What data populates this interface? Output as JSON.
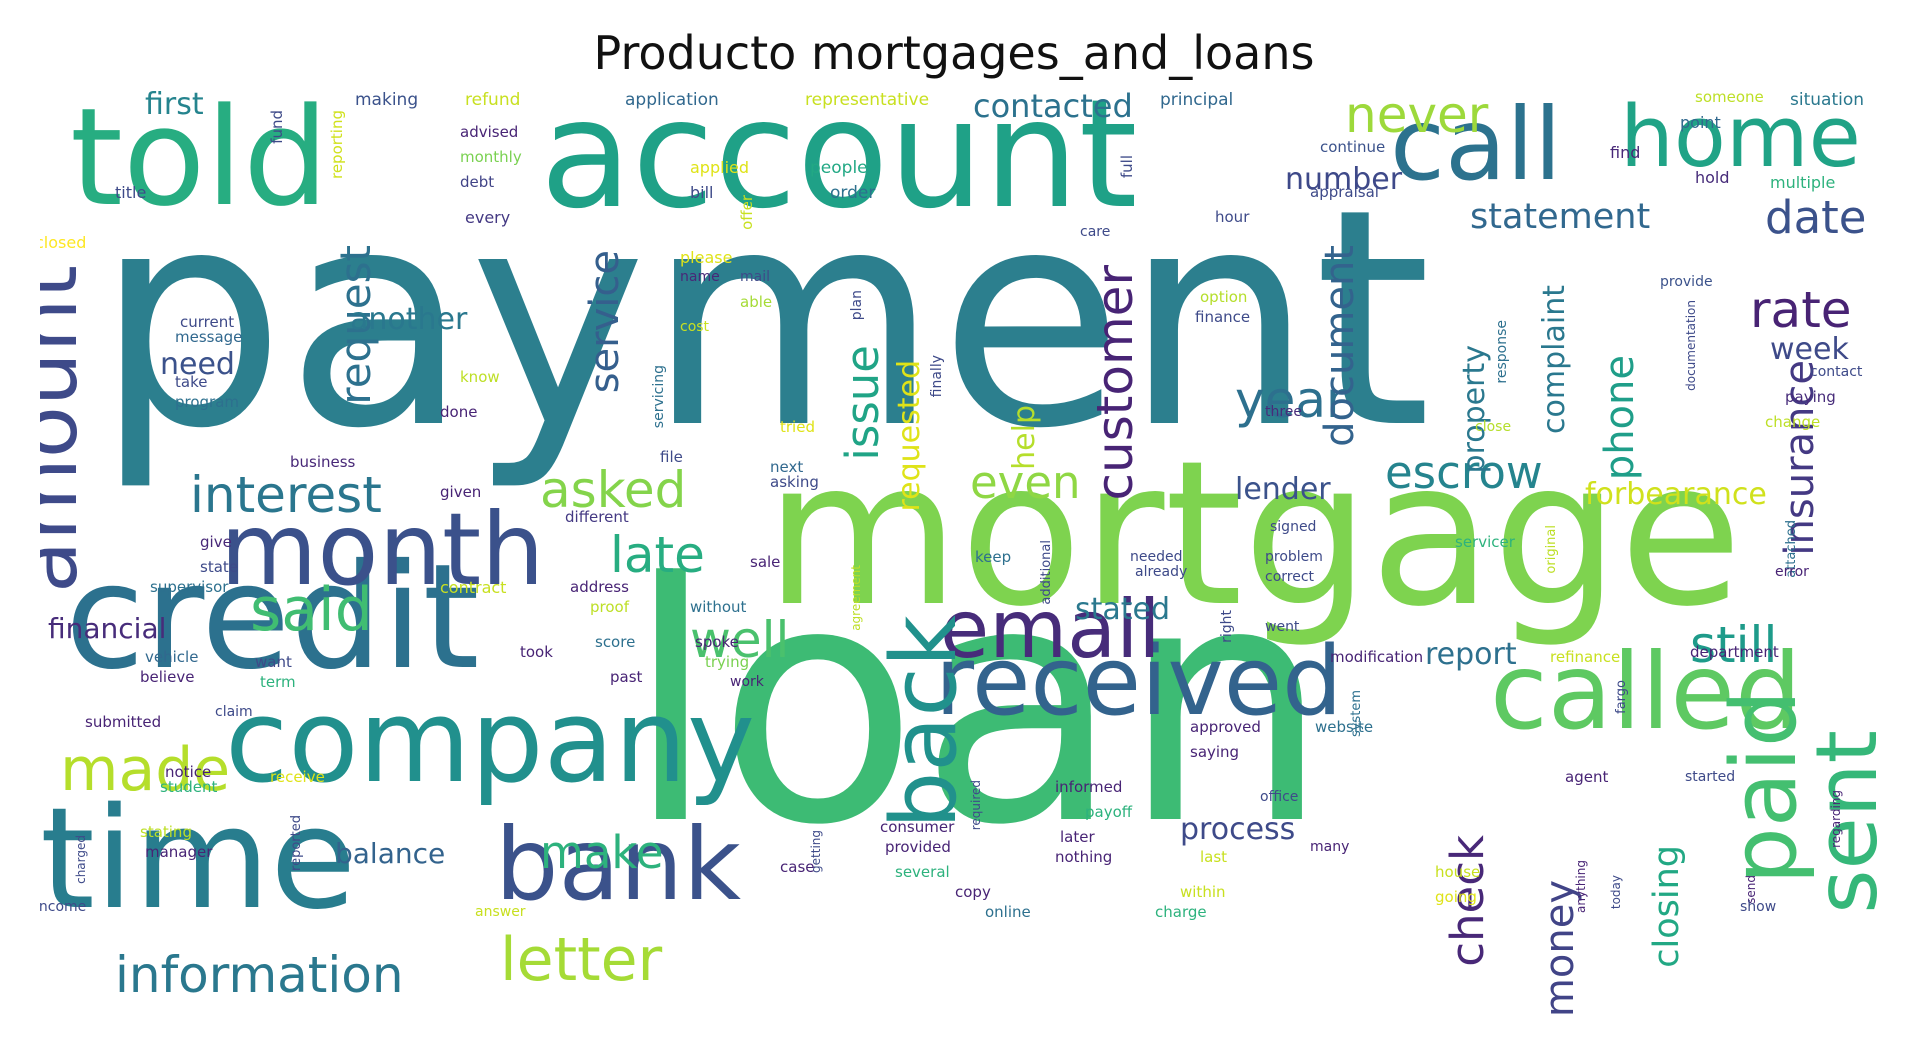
{
  "title": "Producto mortgages_and_loans",
  "palette": {
    "dark_purple": "#472c7a",
    "indigo": "#3b518b",
    "blue": "#2c718e",
    "teal": "#21908d",
    "green": "#27ad81",
    "light_green": "#5cc863",
    "lime": "#aadc32",
    "yellow": "#fde725"
  },
  "words": [
    {
      "text": "payment",
      "color": "#2c7f8e"
    },
    {
      "text": "loan",
      "color": "#3dbb74"
    },
    {
      "text": "mortgage",
      "color": "#7ed34f"
    },
    {
      "text": "account",
      "color": "#1fa187"
    },
    {
      "text": "told",
      "color": "#27ad81"
    },
    {
      "text": "credit",
      "color": "#2c718e"
    },
    {
      "text": "time",
      "color": "#287d8e"
    },
    {
      "text": "company",
      "color": "#21908d"
    },
    {
      "text": "month",
      "color": "#3b518b"
    },
    {
      "text": "received",
      "color": "#33638d"
    },
    {
      "text": "call",
      "color": "#2c728e"
    },
    {
      "text": "home",
      "color": "#20a386"
    },
    {
      "text": "called",
      "color": "#5ec962"
    },
    {
      "text": "bank",
      "color": "#3b528b"
    },
    {
      "text": "email",
      "color": "#472c7a"
    },
    {
      "text": "back",
      "color": "#21918c"
    },
    {
      "text": "paid",
      "color": "#44bf70"
    },
    {
      "text": "sent",
      "color": "#35b779"
    },
    {
      "text": "amount",
      "color": "#3e4a89"
    },
    {
      "text": "letter",
      "color": "#a5db36"
    },
    {
      "text": "information",
      "color": "#2a788e"
    },
    {
      "text": "made",
      "color": "#b5de2b"
    },
    {
      "text": "said",
      "color": "#40bd72"
    },
    {
      "text": "interest",
      "color": "#2a768e"
    },
    {
      "text": "never",
      "color": "#9dd93b"
    },
    {
      "text": "date",
      "color": "#3b528b"
    },
    {
      "text": "rate",
      "color": "#482374"
    },
    {
      "text": "year",
      "color": "#2d708e"
    },
    {
      "text": "customer",
      "color": "#482475"
    },
    {
      "text": "escrow",
      "color": "#25848e"
    },
    {
      "text": "document",
      "color": "#33638d"
    },
    {
      "text": "service",
      "color": "#355f8d"
    },
    {
      "text": "request",
      "color": "#2d718e"
    },
    {
      "text": "issue",
      "color": "#20a486"
    },
    {
      "text": "asked",
      "color": "#84d44b"
    },
    {
      "text": "late",
      "color": "#27ad81"
    },
    {
      "text": "well",
      "color": "#4ac16d"
    },
    {
      "text": "still",
      "color": "#1e9b8a"
    },
    {
      "text": "insurance",
      "color": "#443983"
    },
    {
      "text": "check",
      "color": "#482878"
    },
    {
      "text": "money",
      "color": "#414487"
    },
    {
      "text": "closing",
      "color": "#22a884"
    },
    {
      "text": "make",
      "color": "#2db27d"
    },
    {
      "text": "even",
      "color": "#8fd744"
    },
    {
      "text": "phone",
      "color": "#1f9e89"
    },
    {
      "text": "statement",
      "color": "#31688e"
    },
    {
      "text": "contacted",
      "color": "#2c728e"
    },
    {
      "text": "first",
      "color": "#25848e"
    },
    {
      "text": "need",
      "color": "#3b528b"
    },
    {
      "text": "another",
      "color": "#2a788e"
    },
    {
      "text": "number",
      "color": "#3e4989"
    },
    {
      "text": "lender",
      "color": "#3b528b"
    },
    {
      "text": "forbearance",
      "color": "#d0e11c"
    },
    {
      "text": "process",
      "color": "#3e4a89"
    },
    {
      "text": "report",
      "color": "#2d708e"
    },
    {
      "text": "stated",
      "color": "#2a788e"
    },
    {
      "text": "balance",
      "color": "#33638d"
    },
    {
      "text": "financial",
      "color": "#472c7a"
    },
    {
      "text": "help",
      "color": "#b5de2b"
    },
    {
      "text": "requested",
      "color": "#dfe318"
    },
    {
      "text": "property",
      "color": "#2a788e"
    },
    {
      "text": "complaint",
      "color": "#2a788e"
    },
    {
      "text": "week",
      "color": "#3e4a89"
    },
    {
      "text": "making",
      "color": "#3b528b"
    },
    {
      "text": "refund",
      "color": "#c8e020"
    },
    {
      "text": "application",
      "color": "#31688e"
    },
    {
      "text": "representative",
      "color": "#c8e020"
    },
    {
      "text": "principal",
      "color": "#31688e"
    },
    {
      "text": "point",
      "color": "#31688e"
    },
    {
      "text": "someone",
      "color": "#bddf26"
    },
    {
      "text": "situation",
      "color": "#2a788e"
    },
    {
      "text": "fund",
      "color": "#3e4a89"
    },
    {
      "text": "reporting",
      "color": "#d0e11c"
    },
    {
      "text": "advised",
      "color": "#482475"
    },
    {
      "text": "monthly",
      "color": "#7ad151"
    },
    {
      "text": "debt",
      "color": "#414487"
    },
    {
      "text": "applied",
      "color": "#dfe318"
    },
    {
      "text": "bill",
      "color": "#3e4a89"
    },
    {
      "text": "people",
      "color": "#22a884"
    },
    {
      "text": "order",
      "color": "#2d708e"
    },
    {
      "text": "continue",
      "color": "#3b528b"
    },
    {
      "text": "appraisal",
      "color": "#3e4a89"
    },
    {
      "text": "find",
      "color": "#482878"
    },
    {
      "text": "hold",
      "color": "#472c7a"
    },
    {
      "text": "multiple",
      "color": "#2db27d"
    },
    {
      "text": "title",
      "color": "#3e4a89"
    },
    {
      "text": "every",
      "color": "#443983"
    },
    {
      "text": "offer",
      "color": "#c8e020"
    },
    {
      "text": "full",
      "color": "#3e4a89"
    },
    {
      "text": "hour",
      "color": "#3e4a89"
    },
    {
      "text": "closed",
      "color": "#fde725"
    },
    {
      "text": "please",
      "color": "#dfe318"
    },
    {
      "text": "name",
      "color": "#482878"
    },
    {
      "text": "mail",
      "color": "#3e4a89"
    },
    {
      "text": "care",
      "color": "#3e4a89"
    },
    {
      "text": "provide",
      "color": "#3b528b"
    },
    {
      "text": "able",
      "color": "#a5db36"
    },
    {
      "text": "current",
      "color": "#3e4a89"
    },
    {
      "text": "message",
      "color": "#31688e"
    },
    {
      "text": "cost",
      "color": "#c8e020"
    },
    {
      "text": "option",
      "color": "#b5de2b"
    },
    {
      "text": "finance",
      "color": "#3e4a89"
    },
    {
      "text": "plan",
      "color": "#3e4a89"
    },
    {
      "text": "response",
      "color": "#2d708e"
    },
    {
      "text": "documentation",
      "color": "#3e4a89"
    },
    {
      "text": "contact",
      "color": "#3e4a89"
    },
    {
      "text": "take",
      "color": "#3e4a89"
    },
    {
      "text": "program",
      "color": "#2d708e"
    },
    {
      "text": "know",
      "color": "#bddf26"
    },
    {
      "text": "done",
      "color": "#482475"
    },
    {
      "text": "servicing",
      "color": "#2d708e"
    },
    {
      "text": "finally",
      "color": "#3e4a89"
    },
    {
      "text": "tried",
      "color": "#dfe318"
    },
    {
      "text": "three",
      "color": "#472c7a"
    },
    {
      "text": "close",
      "color": "#b5de2b"
    },
    {
      "text": "paying",
      "color": "#472c7a"
    },
    {
      "text": "change",
      "color": "#bddf26"
    },
    {
      "text": "business",
      "color": "#482878"
    },
    {
      "text": "file",
      "color": "#3e4a89"
    },
    {
      "text": "next",
      "color": "#31688e"
    },
    {
      "text": "asking",
      "color": "#3e4a89"
    },
    {
      "text": "given",
      "color": "#482475"
    },
    {
      "text": "different",
      "color": "#443983"
    },
    {
      "text": "give",
      "color": "#482878"
    },
    {
      "text": "state",
      "color": "#3e4a89"
    },
    {
      "text": "signed",
      "color": "#3e4a89"
    },
    {
      "text": "servicer",
      "color": "#2db27d"
    },
    {
      "text": "original",
      "color": "#bddf26"
    },
    {
      "text": "attached",
      "color": "#2d708e"
    },
    {
      "text": "needed",
      "color": "#3e4a89"
    },
    {
      "text": "already",
      "color": "#3e4a89"
    },
    {
      "text": "problem",
      "color": "#3e4a89"
    },
    {
      "text": "correct",
      "color": "#3e4a89"
    },
    {
      "text": "error",
      "color": "#482475"
    },
    {
      "text": "sale",
      "color": "#482475"
    },
    {
      "text": "keep",
      "color": "#2d708e"
    },
    {
      "text": "additional",
      "color": "#3e4a89"
    },
    {
      "text": "supervisor",
      "color": "#2d708e"
    },
    {
      "text": "contract",
      "color": "#c8e020"
    },
    {
      "text": "address",
      "color": "#482475"
    },
    {
      "text": "proof",
      "color": "#bddf26"
    },
    {
      "text": "without",
      "color": "#2d708e"
    },
    {
      "text": "agreement",
      "color": "#bddf26"
    },
    {
      "text": "right",
      "color": "#3e4a89"
    },
    {
      "text": "went",
      "color": "#3e4a89"
    },
    {
      "text": "vehicle",
      "color": "#31688e"
    },
    {
      "text": "want",
      "color": "#3e4a89"
    },
    {
      "text": "took",
      "color": "#482475"
    },
    {
      "text": "score",
      "color": "#2d708e"
    },
    {
      "text": "spoke",
      "color": "#482475"
    },
    {
      "text": "believe",
      "color": "#482475"
    },
    {
      "text": "term",
      "color": "#2db27d"
    },
    {
      "text": "past",
      "color": "#482475"
    },
    {
      "text": "trying",
      "color": "#7ad151"
    },
    {
      "text": "modification",
      "color": "#482475"
    },
    {
      "text": "refinance",
      "color": "#c8e020"
    },
    {
      "text": "department",
      "color": "#482475"
    },
    {
      "text": "work",
      "color": "#482475"
    },
    {
      "text": "system",
      "color": "#2d708e"
    },
    {
      "text": "fargo",
      "color": "#3e4a89"
    },
    {
      "text": "submitted",
      "color": "#482475"
    },
    {
      "text": "claim",
      "color": "#3e4a89"
    },
    {
      "text": "approved",
      "color": "#482475"
    },
    {
      "text": "website",
      "color": "#2d708e"
    },
    {
      "text": "saying",
      "color": "#482475"
    },
    {
      "text": "notice",
      "color": "#482475"
    },
    {
      "text": "receive",
      "color": "#dfe318"
    },
    {
      "text": "student",
      "color": "#2db27d"
    },
    {
      "text": "required",
      "color": "#3e4a89"
    },
    {
      "text": "informed",
      "color": "#482475"
    },
    {
      "text": "office",
      "color": "#3e4a89"
    },
    {
      "text": "agent",
      "color": "#482475"
    },
    {
      "text": "started",
      "color": "#3e4a89"
    },
    {
      "text": "regarding",
      "color": "#482475"
    },
    {
      "text": "payoff",
      "color": "#2db27d"
    },
    {
      "text": "charged",
      "color": "#3e4a89"
    },
    {
      "text": "stating",
      "color": "#bddf26"
    },
    {
      "text": "manager",
      "color": "#482475"
    },
    {
      "text": "reported",
      "color": "#3e4a89"
    },
    {
      "text": "getting",
      "color": "#3e4a89"
    },
    {
      "text": "consumer",
      "color": "#482475"
    },
    {
      "text": "provided",
      "color": "#482475"
    },
    {
      "text": "later",
      "color": "#482475"
    },
    {
      "text": "nothing",
      "color": "#482475"
    },
    {
      "text": "many",
      "color": "#482475"
    },
    {
      "text": "anything",
      "color": "#482475"
    },
    {
      "text": "today",
      "color": "#3e4a89"
    },
    {
      "text": "send",
      "color": "#482475"
    },
    {
      "text": "case",
      "color": "#482475"
    },
    {
      "text": "several",
      "color": "#2db27d"
    },
    {
      "text": "last",
      "color": "#c8e020"
    },
    {
      "text": "house",
      "color": "#c8e020"
    },
    {
      "text": "income",
      "color": "#3e4a89"
    },
    {
      "text": "answer",
      "color": "#c8e020"
    },
    {
      "text": "copy",
      "color": "#482475"
    },
    {
      "text": "within",
      "color": "#c8e020"
    },
    {
      "text": "going",
      "color": "#dfe318"
    },
    {
      "text": "online",
      "color": "#2d708e"
    },
    {
      "text": "charge",
      "color": "#2db27d"
    },
    {
      "text": "show",
      "color": "#3e4a89"
    }
  ]
}
